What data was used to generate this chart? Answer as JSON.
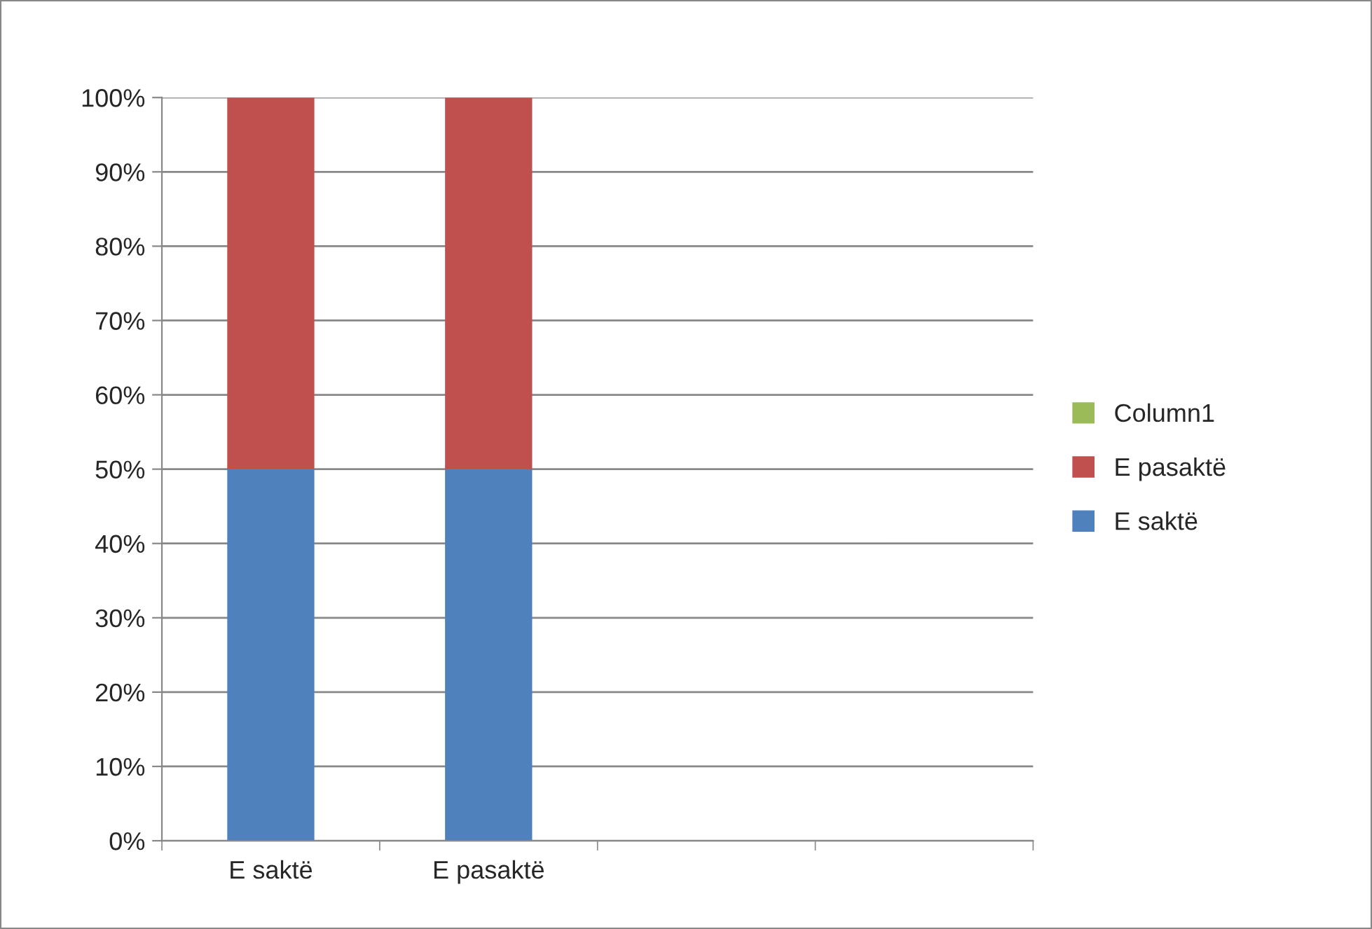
{
  "chart_data": {
    "type": "bar",
    "stacked": true,
    "categories": [
      "E saktë",
      "E pasaktë",
      null,
      null
    ],
    "series": [
      {
        "name": "E saktë",
        "color": "#4f81bd",
        "values": [
          50,
          50,
          null,
          null
        ]
      },
      {
        "name": "E pasaktë",
        "color": "#c0504d",
        "values": [
          50,
          50,
          null,
          null
        ]
      },
      {
        "name": "Column1",
        "color": "#9bbb59",
        "values": [
          null,
          null,
          null,
          null
        ]
      }
    ],
    "ylim": [
      0,
      100
    ],
    "yticks": [
      {
        "value": 0,
        "label": "0%"
      },
      {
        "value": 10,
        "label": "10%"
      },
      {
        "value": 20,
        "label": "20%"
      },
      {
        "value": 30,
        "label": "30%"
      },
      {
        "value": 40,
        "label": "40%"
      },
      {
        "value": 50,
        "label": "50%"
      },
      {
        "value": 60,
        "label": "60%"
      },
      {
        "value": 70,
        "label": "70%"
      },
      {
        "value": 80,
        "label": "80%"
      },
      {
        "value": 90,
        "label": "90%"
      },
      {
        "value": 100,
        "label": "100%"
      }
    ],
    "grid": "y",
    "legend": "right"
  }
}
